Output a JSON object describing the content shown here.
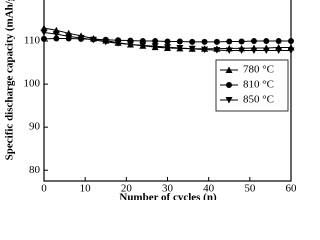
{
  "chart_data": {
    "type": "line",
    "y_label": "Specific discharge capacity (mAh/g",
    "x_label": "Number of cycles (n)",
    "x": [
      0,
      3,
      6,
      9,
      12,
      15,
      18,
      21,
      24,
      27,
      30,
      33,
      36,
      39,
      42,
      45,
      48,
      51,
      54,
      57,
      60
    ],
    "series": [
      {
        "name": "780 °C",
        "color": "#000000",
        "marker": "triangle-up",
        "values": [
          113,
          112.5,
          111.8,
          111.2,
          110.6,
          110.1,
          109.6,
          109.2,
          108.9,
          108.6,
          108.4,
          108.3,
          108.2,
          108.2,
          108.2,
          108.3,
          108.3,
          108.4,
          108.4,
          108.5,
          108.5
        ]
      },
      {
        "name": "810 °C",
        "color": "#000000",
        "marker": "circle",
        "values": [
          110.5,
          110.6,
          110.6,
          110.5,
          110.4,
          110.3,
          110.2,
          110.1,
          110.0,
          110.0,
          109.9,
          109.9,
          109.8,
          109.8,
          109.8,
          109.9,
          109.9,
          110.0,
          110.0,
          110.0,
          110.0
        ]
      },
      {
        "name": "850 °C",
        "color": "#000000",
        "marker": "triangle-down",
        "values": [
          112,
          111.6,
          111.1,
          110.7,
          110.3,
          109.8,
          109.5,
          109.2,
          109.0,
          108.8,
          108.6,
          108.4,
          108.2,
          108.0,
          107.9,
          107.8,
          107.8,
          107.8,
          107.8,
          107.8,
          107.8
        ]
      }
    ],
    "xlim": [
      0,
      60
    ],
    "xticks": [
      0,
      10,
      20,
      30,
      40,
      50,
      60
    ],
    "ylim": [
      77.5,
      120
    ],
    "yticks": [
      80,
      90,
      100,
      110
    ],
    "legend": "right"
  }
}
